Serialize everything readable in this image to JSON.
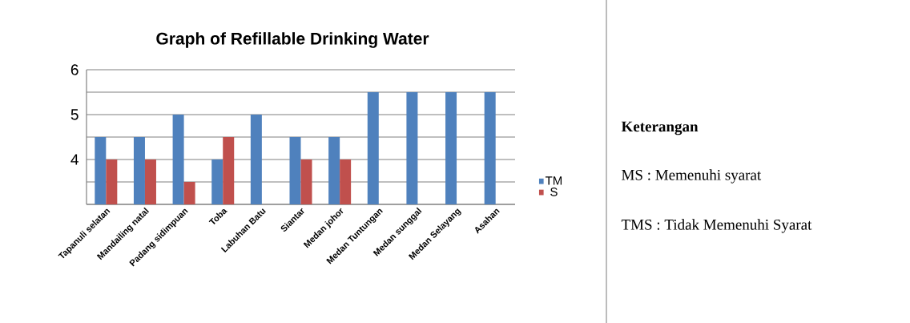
{
  "chart_data": {
    "type": "bar",
    "title": "Graph of Refillable Drinking Water",
    "categories": [
      "Tapanuli selatan",
      "Mandailing natal",
      "Padang sidimpuan",
      "Toba",
      "Labuhan Batu",
      "Siantar",
      "Medan johor",
      "Medan Tuntungan",
      "Medan sunggal",
      "Medan Selayang",
      "Asahan"
    ],
    "series": [
      {
        "name": "TM",
        "color": "#4f81bd",
        "values": [
          4.5,
          4.5,
          5,
          4,
          5,
          4.5,
          4.5,
          5.5,
          5.5,
          5.5,
          5.5
        ]
      },
      {
        "name": "S",
        "color": "#c0504d",
        "values": [
          4,
          4,
          3.5,
          4.5,
          null,
          4,
          4,
          null,
          null,
          null,
          null
        ]
      }
    ],
    "ylim": [
      3,
      6
    ],
    "yticks": [
      {
        "value": 3,
        "label": null
      },
      {
        "value": 3.5,
        "label": null
      },
      4,
      {
        "value": 4.5,
        "label": null
      },
      5,
      {
        "value": 5.5,
        "label": null
      },
      6
    ],
    "grid": "y",
    "legend": "right",
    "annotations": [
      "Keterangan",
      "MS : Memenuhi syarat",
      "TMS : Tidak Memenuhi Syarat"
    ]
  }
}
